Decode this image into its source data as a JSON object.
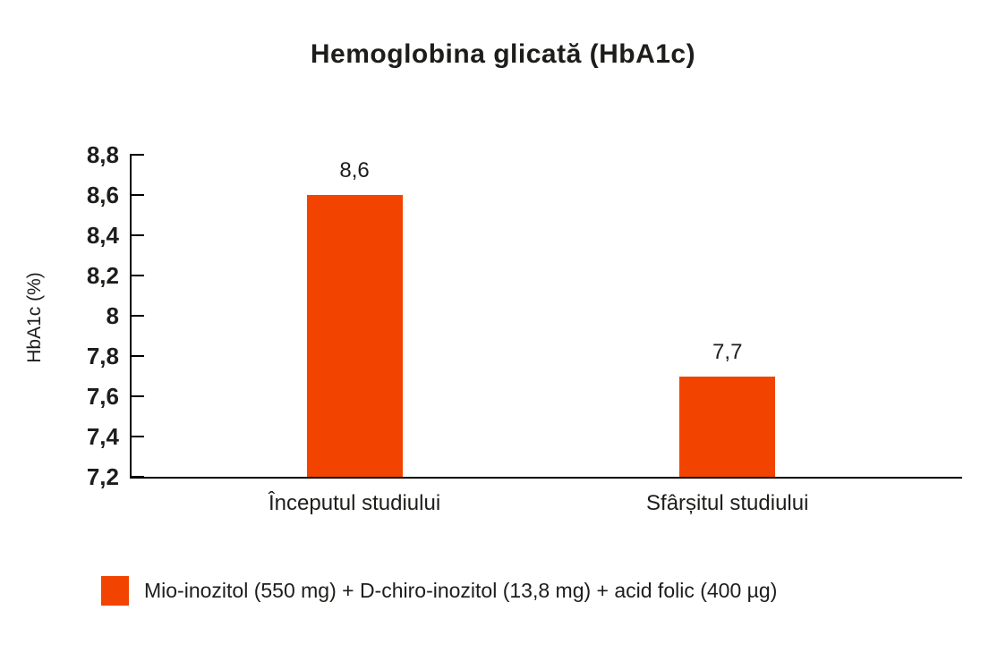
{
  "colors": {
    "bar": "#F24300",
    "axis": "#000000",
    "text": "#1D1D1B",
    "background": "#FFFFFF"
  },
  "chart_data": {
    "type": "bar",
    "title": "Hemoglobina glicată (HbA1c)",
    "xlabel": "",
    "ylabel": "HbA1c (%)",
    "categories": [
      "Începutul studiului",
      "Sfârșitul studiului"
    ],
    "values": [
      8.6,
      7.7
    ],
    "value_labels": [
      "8,6",
      "7,7"
    ],
    "ylim": [
      7.2,
      8.8
    ],
    "ytick_step": 0.2,
    "ytick_labels": [
      "8,8",
      "8,6",
      "8,4",
      "8,2",
      "8",
      "7,8",
      "7,6",
      "7,4",
      "7,2"
    ],
    "grid": false,
    "bar_color": "#F24300",
    "legend": {
      "position": "bottom",
      "entries": [
        {
          "label": "Mio-inozitol (550 mg) + D-chiro-inozitol (13,8 mg) + acid folic (400 µg)",
          "color": "#F24300"
        }
      ]
    }
  }
}
